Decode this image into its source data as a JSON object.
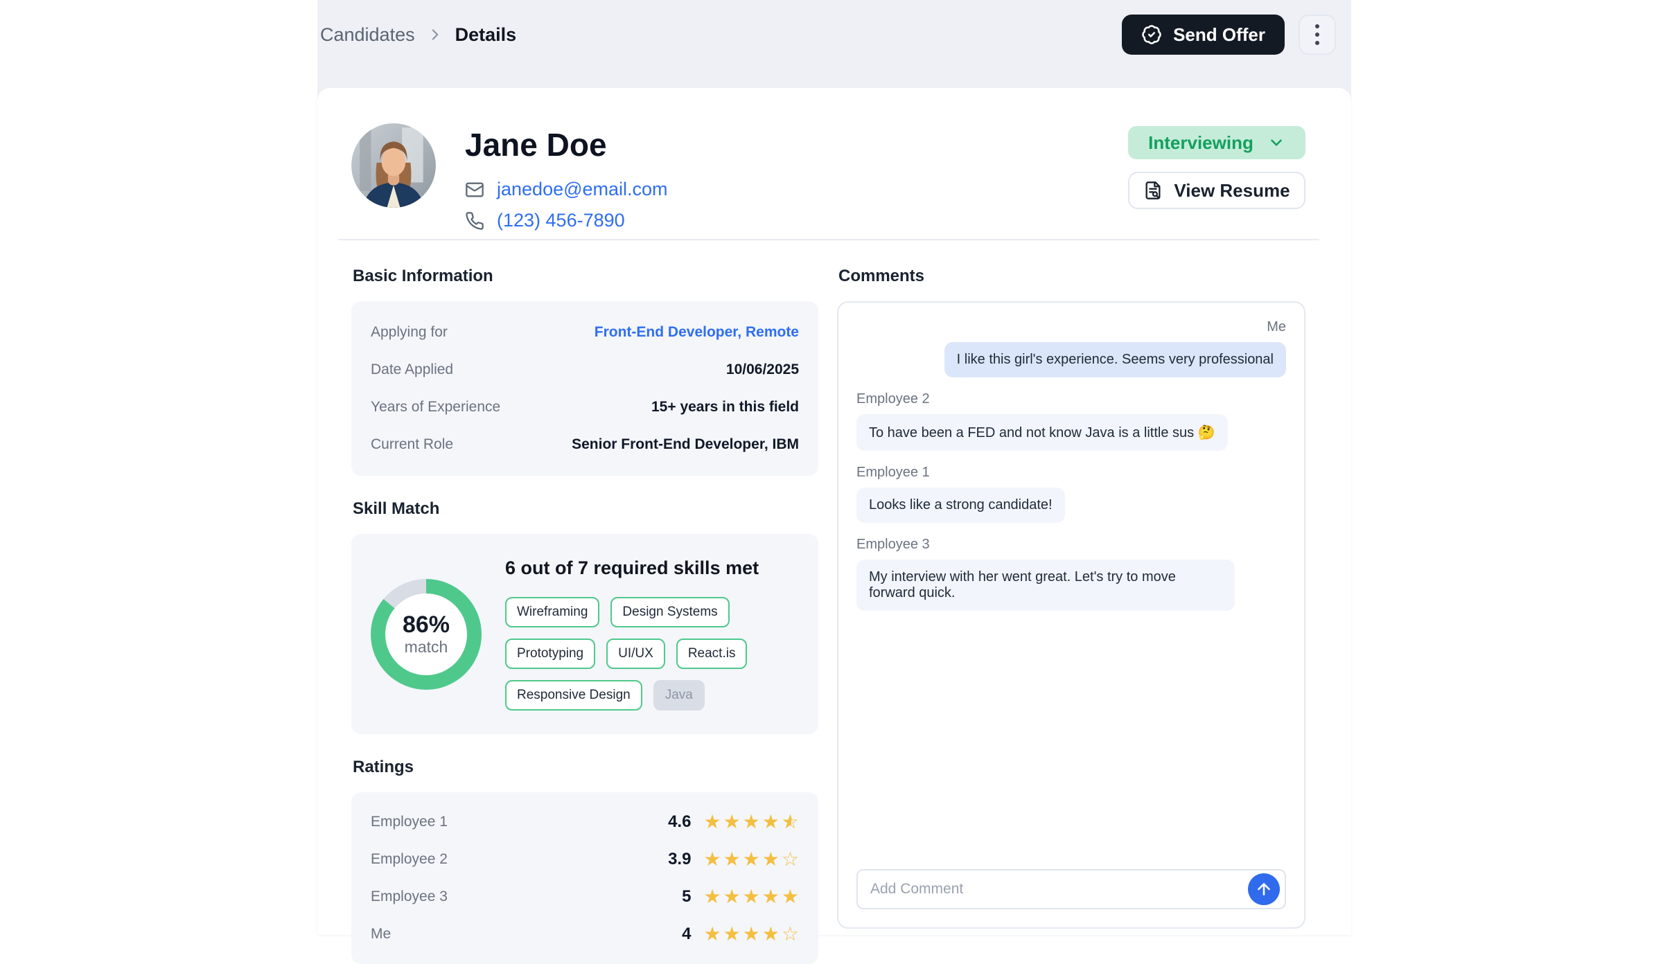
{
  "breadcrumb": {
    "parent": "Candidates",
    "current": "Details"
  },
  "topbar": {
    "send_offer_label": "Send Offer"
  },
  "profile": {
    "name": "Jane Doe",
    "email": "janedoe@email.com",
    "phone": "(123) 456-7890",
    "status": "Interviewing",
    "view_resume_label": "View Resume"
  },
  "basic_info": {
    "title": "Basic Information",
    "rows": [
      {
        "label": "Applying for",
        "value": "Front-End Developer, Remote"
      },
      {
        "label": "Date Applied",
        "value": "10/06/2025"
      },
      {
        "label": "Years of Experience",
        "value": "15+ years in this field"
      },
      {
        "label": "Current Role",
        "value": "Senior Front-End Developer, IBM"
      }
    ]
  },
  "skill_match": {
    "title": "Skill Match",
    "headline": "6 out of 7 required skills met",
    "percent_label": "86%",
    "match_label": "match",
    "skills_met": [
      "Wireframing",
      "Design Systems",
      "Prototyping",
      "UI/UX",
      "React.is",
      "Responsive Design"
    ],
    "skills_missing": [
      "Java"
    ]
  },
  "chart_data": {
    "type": "pie",
    "title": "Skill Match donut",
    "labels": [
      "match",
      "gap"
    ],
    "values": [
      86,
      14
    ],
    "percent": 86,
    "center_label": "86% match"
  },
  "ratings": {
    "title": "Ratings",
    "rows": [
      {
        "label": "Employee 1",
        "value": "4.6",
        "stars": [
          "full",
          "full",
          "full",
          "full",
          "half"
        ],
        "editable": false
      },
      {
        "label": "Employee 2",
        "value": "3.9",
        "stars": [
          "full",
          "full",
          "full",
          "full",
          "empty"
        ],
        "editable": false
      },
      {
        "label": "Employee 3",
        "value": "5",
        "stars": [
          "full",
          "full",
          "full",
          "full",
          "full"
        ],
        "editable": false
      },
      {
        "label": "Me",
        "value": "4",
        "stars": [
          "full",
          "full",
          "full",
          "full",
          "empty"
        ],
        "editable": true
      }
    ]
  },
  "comments": {
    "title": "Comments",
    "messages": [
      {
        "author": "Me",
        "text": "I like this girl's experience. Seems very professional",
        "align": "right"
      },
      {
        "author": "Employee 2",
        "text": "To have been a FED and not know Java is a little sus 🤔",
        "align": "left"
      },
      {
        "author": "Employee 1",
        "text": "Looks like a strong candidate!",
        "align": "left"
      },
      {
        "author": "Employee 3",
        "text": "My interview with her went great. Let's try to move forward quick.",
        "align": "left"
      }
    ],
    "input_placeholder": "Add Comment"
  },
  "colors": {
    "donut_green": "#4fc98b",
    "donut_track": "#d8dce4",
    "status_bg": "#c5ecd9",
    "status_text": "#13a05f",
    "star_yellow": "#f4bf41",
    "link_blue": "#2e6ef2",
    "send_offer_bg": "#141a24",
    "me_bubble": "#dce6fa",
    "other_bubble": "#f2f5fb"
  }
}
